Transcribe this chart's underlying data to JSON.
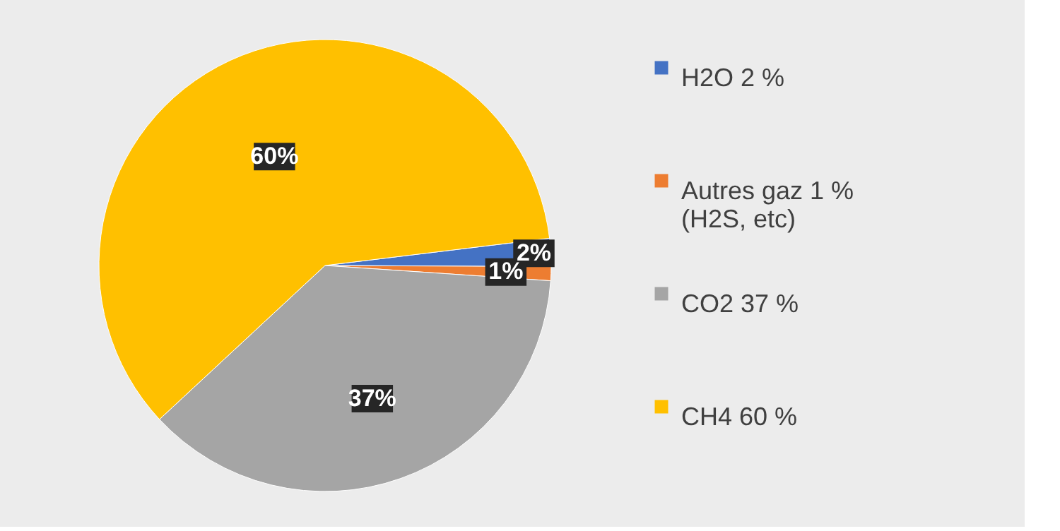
{
  "chart_data": {
    "type": "pie",
    "categories": [
      "H2O 2 %",
      "Autres gaz 1 %\n(H2S, etc)",
      "CO2 37 %",
      "CH4 60 %"
    ],
    "values": [
      2,
      1,
      37,
      60
    ],
    "colors": [
      "#4472c4",
      "#ed7d31",
      "#a5a5a5",
      "#ffc000"
    ],
    "value_labels": [
      "2%",
      "1%",
      "37%",
      "60%"
    ],
    "legend": "right"
  }
}
